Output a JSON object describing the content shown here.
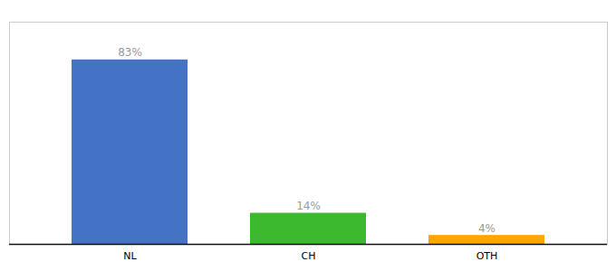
{
  "chart_data": {
    "type": "bar",
    "categories": [
      "NL",
      "CH",
      "OTH"
    ],
    "values": [
      83,
      14,
      4
    ],
    "value_labels": [
      "83%",
      "14%",
      "4%"
    ],
    "colors": [
      "#4472C4",
      "#3CB92E",
      "#FFA500"
    ],
    "ylim": [
      0,
      100
    ],
    "data_labels": true,
    "tick_labels": "x"
  }
}
